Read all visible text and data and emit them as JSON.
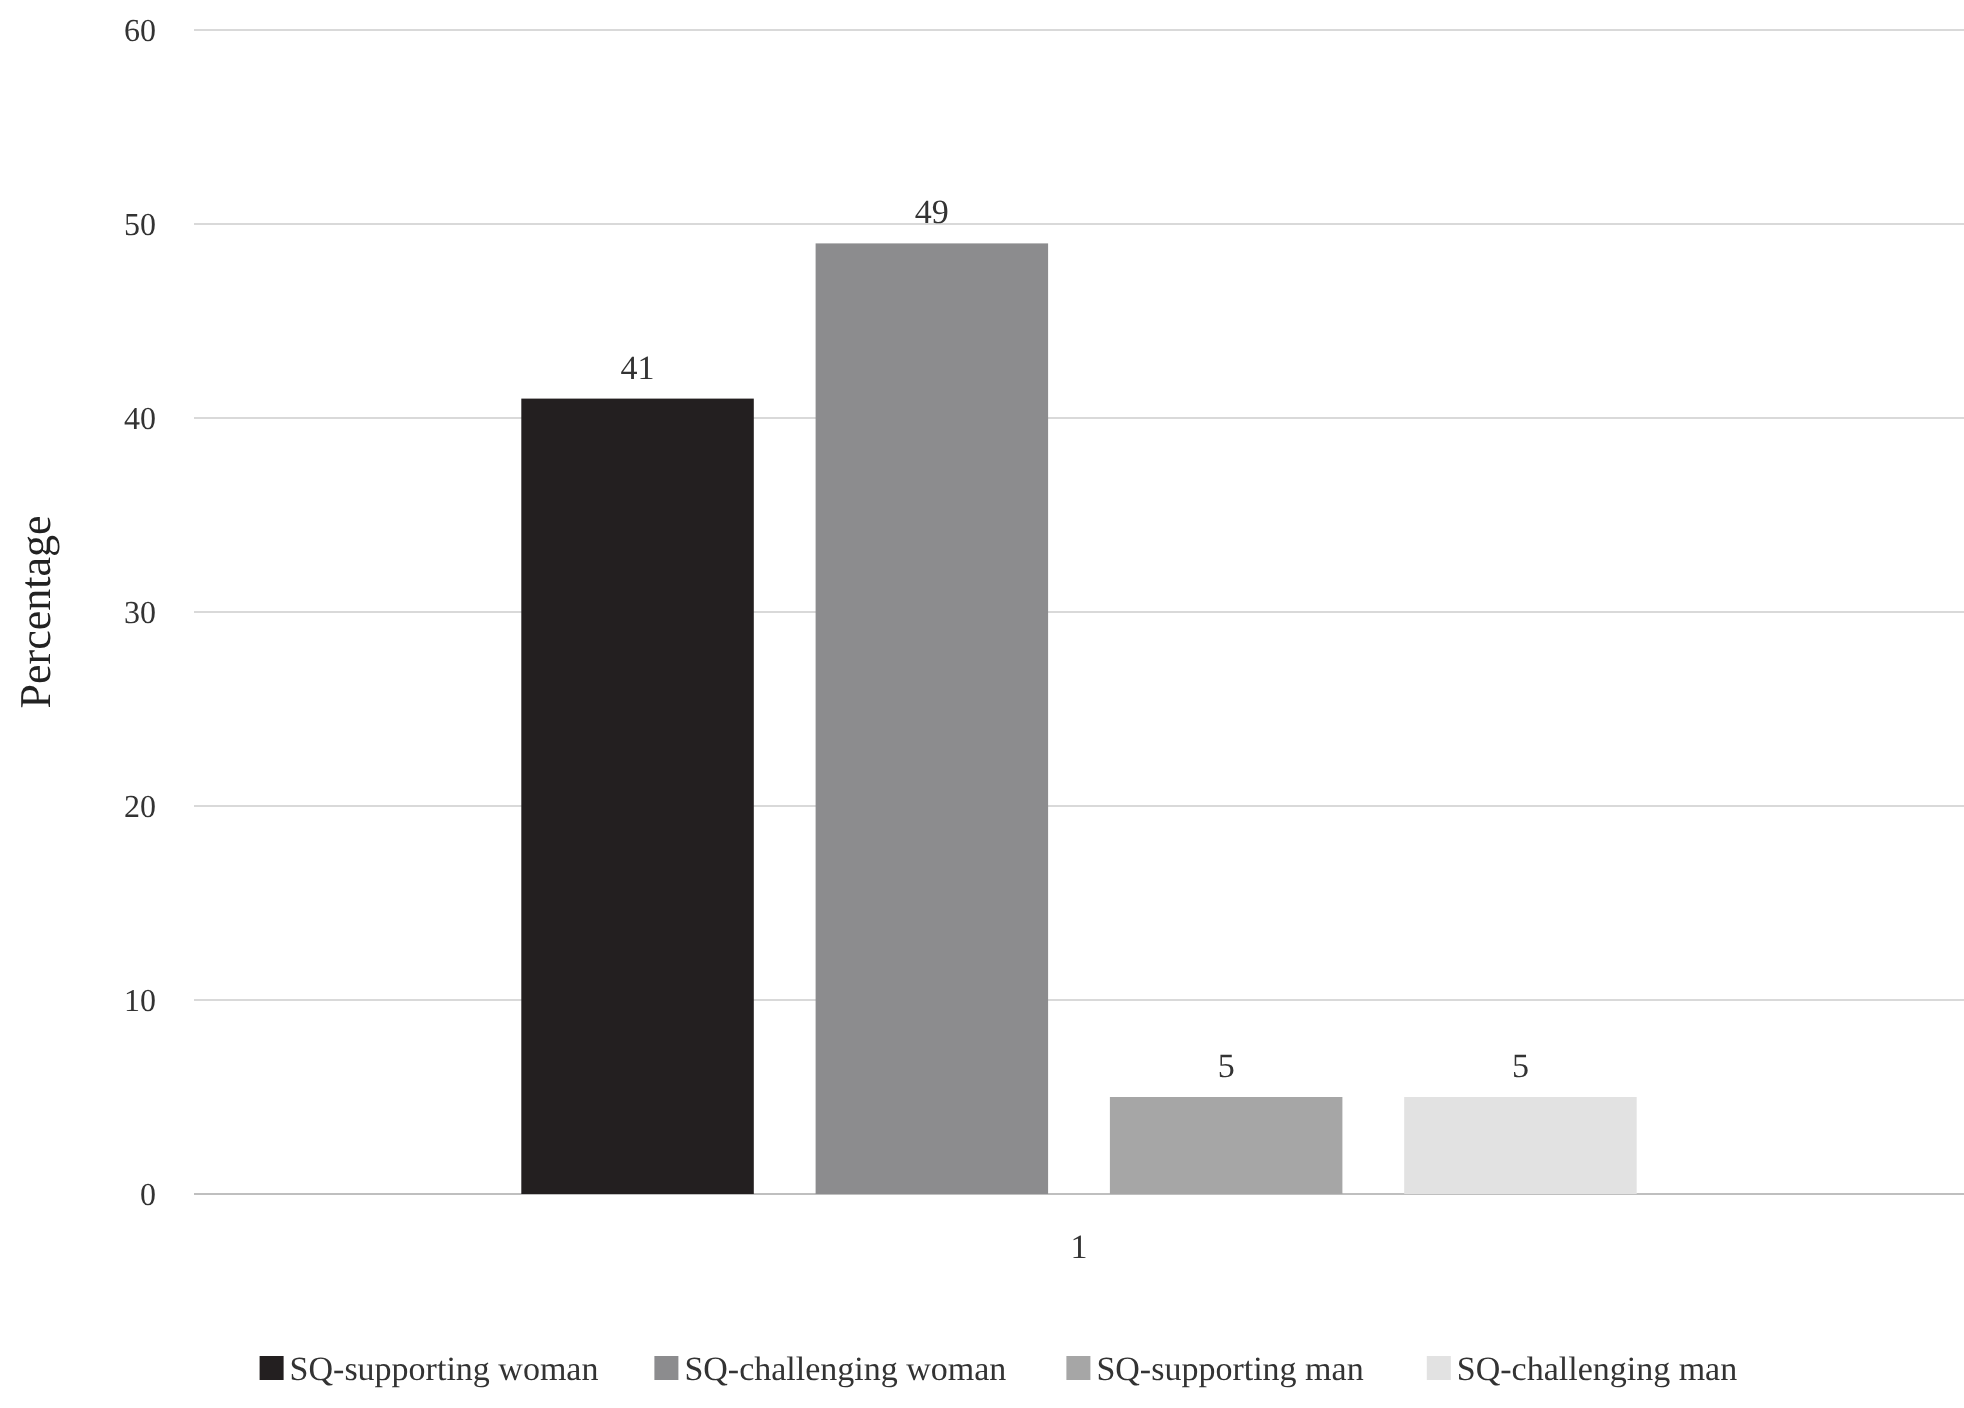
{
  "chart_data": {
    "type": "bar",
    "ylabel": "Percentage",
    "categories": [
      "1"
    ],
    "series": [
      {
        "name": "SQ-supporting woman",
        "color": "#231f20",
        "values": [
          41
        ]
      },
      {
        "name": "SQ-challenging woman",
        "color": "#8c8c8e",
        "values": [
          49
        ]
      },
      {
        "name": "SQ-supporting man",
        "color": "#a6a6a6",
        "values": [
          5
        ]
      },
      {
        "name": "SQ-challenging man",
        "color": "#e2e2e2",
        "values": [
          5
        ]
      }
    ],
    "ylim": [
      0,
      60
    ],
    "yticks": [
      0,
      10,
      20,
      30,
      40,
      50,
      60
    ],
    "grid": "y",
    "legend": "bottom",
    "data_labels": true
  }
}
